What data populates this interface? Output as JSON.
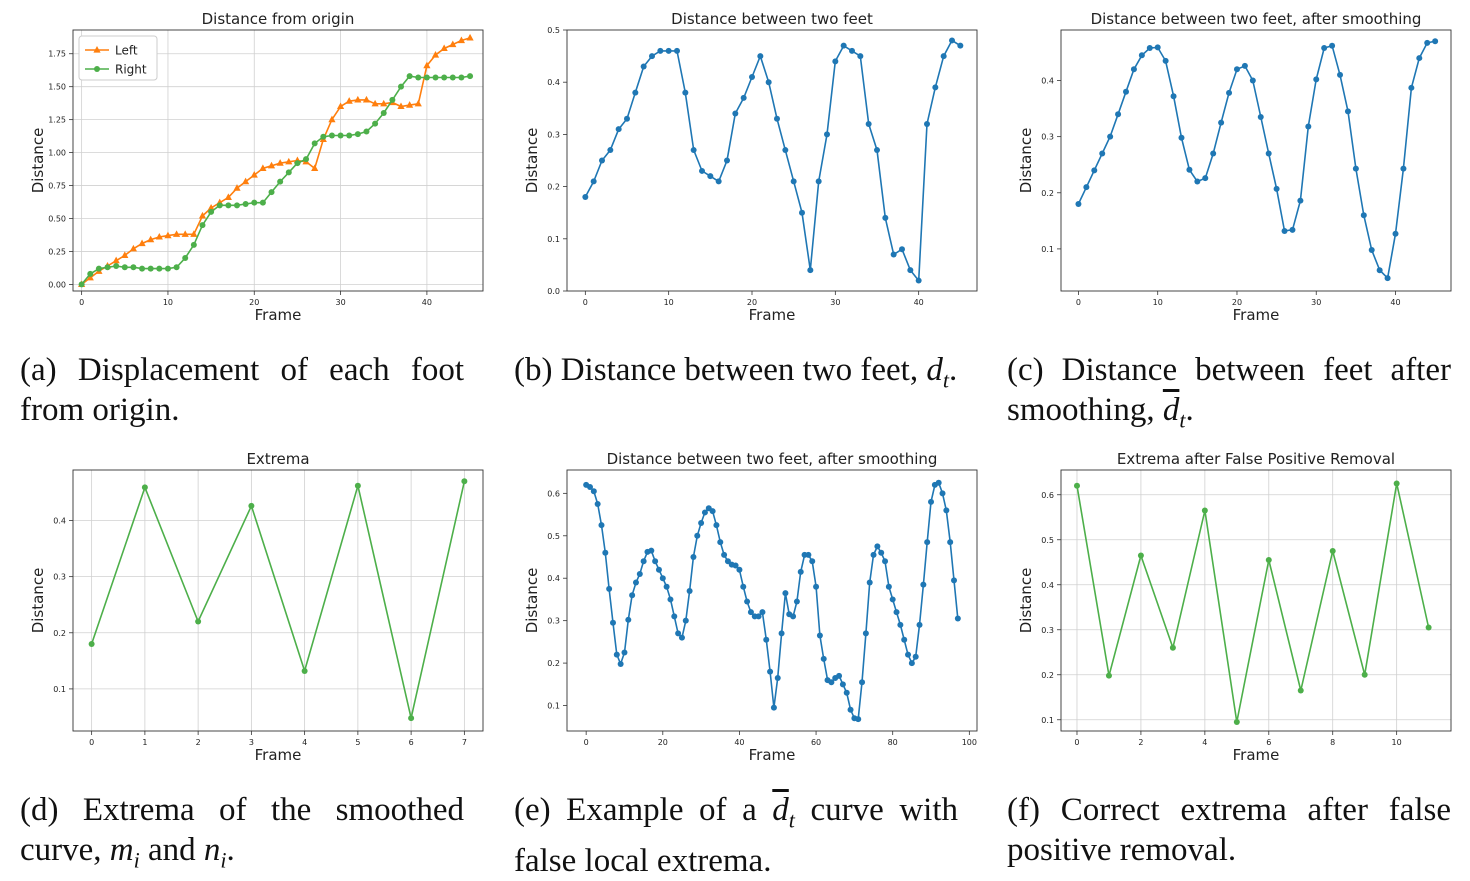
{
  "figure": {
    "captions": [
      "(a) Displacement of each foot from origin.",
      "(b) Distance between two feet, d_t.",
      "(c) Distance between feet after smoothing, d̄_t.",
      "(d) Extrema of the smoothed curve, m_i and n_i.",
      "(e) Example of a d̄_t curve with false local extrema.",
      "(f) Correct extrema after false positive removal."
    ]
  },
  "colors": {
    "orange": "#ff7f0e",
    "blue": "#1f77b4",
    "green": "#4daf4a",
    "grid": "#d0d0d0"
  },
  "chart_data": [
    {
      "type": "line",
      "title": "Distance from origin",
      "xlabel": "Frame",
      "ylabel": "Distance",
      "xlim": [
        -1,
        46.5
      ],
      "ylim": [
        -0.05,
        1.93
      ],
      "xticks": [
        0,
        10,
        20,
        30,
        40
      ],
      "yticks": [
        0.0,
        0.25,
        0.5,
        0.75,
        1.0,
        1.25,
        1.5,
        1.75
      ],
      "ytick_labels": [
        "0.00",
        "0.25",
        "0.50",
        "0.75",
        "1.00",
        "1.25",
        "1.50",
        "1.75"
      ],
      "grid": true,
      "legend": "top-left",
      "series": [
        {
          "name": "Left",
          "color": "#ff7f0e",
          "marker": "triangle",
          "x": [
            0,
            1,
            2,
            3,
            4,
            5,
            6,
            7,
            8,
            9,
            10,
            11,
            12,
            13,
            14,
            15,
            16,
            17,
            18,
            19,
            20,
            21,
            22,
            23,
            24,
            25,
            26,
            27,
            28,
            29,
            30,
            31,
            32,
            33,
            34,
            35,
            36,
            37,
            38,
            39,
            40,
            41,
            42,
            43,
            44,
            45
          ],
          "values": [
            0.0,
            0.05,
            0.1,
            0.14,
            0.18,
            0.22,
            0.27,
            0.31,
            0.34,
            0.36,
            0.37,
            0.38,
            0.38,
            0.38,
            0.52,
            0.58,
            0.62,
            0.66,
            0.73,
            0.78,
            0.83,
            0.88,
            0.9,
            0.92,
            0.93,
            0.94,
            0.93,
            0.88,
            1.1,
            1.25,
            1.35,
            1.39,
            1.4,
            1.4,
            1.37,
            1.37,
            1.38,
            1.35,
            1.36,
            1.37,
            1.66,
            1.74,
            1.79,
            1.82,
            1.85,
            1.87
          ]
        },
        {
          "name": "Right",
          "color": "#4daf4a",
          "marker": "circle",
          "x": [
            0,
            1,
            2,
            3,
            4,
            5,
            6,
            7,
            8,
            9,
            10,
            11,
            12,
            13,
            14,
            15,
            16,
            17,
            18,
            19,
            20,
            21,
            22,
            23,
            24,
            25,
            26,
            27,
            28,
            29,
            30,
            31,
            32,
            33,
            34,
            35,
            36,
            37,
            38,
            39,
            40,
            41,
            42,
            43,
            44,
            45
          ],
          "values": [
            0.0,
            0.08,
            0.12,
            0.13,
            0.14,
            0.13,
            0.13,
            0.12,
            0.12,
            0.12,
            0.12,
            0.13,
            0.2,
            0.3,
            0.45,
            0.55,
            0.6,
            0.6,
            0.6,
            0.61,
            0.62,
            0.62,
            0.7,
            0.78,
            0.85,
            0.92,
            0.95,
            1.07,
            1.12,
            1.13,
            1.13,
            1.13,
            1.14,
            1.16,
            1.22,
            1.3,
            1.4,
            1.5,
            1.58,
            1.57,
            1.57,
            1.57,
            1.57,
            1.57,
            1.57,
            1.58
          ]
        }
      ]
    },
    {
      "type": "line",
      "title": "Distance between two feet",
      "xlabel": "Frame",
      "ylabel": "Distance",
      "xlim": [
        -2.2,
        47
      ],
      "ylim": [
        0,
        0.5
      ],
      "xticks": [
        0,
        10,
        20,
        30,
        40
      ],
      "yticks": [
        0.0,
        0.1,
        0.2,
        0.3,
        0.4,
        0.5
      ],
      "ytick_labels": [
        "0.0",
        "0.1",
        "0.2",
        "0.3",
        "0.4",
        "0.5"
      ],
      "grid": false,
      "series": [
        {
          "name": "",
          "color": "#1f77b4",
          "marker": "circle",
          "x": [
            0,
            1,
            2,
            3,
            4,
            5,
            6,
            7,
            8,
            9,
            10,
            11,
            12,
            13,
            14,
            15,
            16,
            17,
            18,
            19,
            20,
            21,
            22,
            23,
            24,
            25,
            26,
            27,
            28,
            29,
            30,
            31,
            32,
            33,
            34,
            35,
            36,
            37,
            38,
            39,
            40,
            41,
            42,
            43,
            44,
            45
          ],
          "values": [
            0.18,
            0.21,
            0.25,
            0.27,
            0.31,
            0.33,
            0.38,
            0.43,
            0.45,
            0.46,
            0.46,
            0.46,
            0.38,
            0.27,
            0.23,
            0.22,
            0.21,
            0.25,
            0.34,
            0.37,
            0.41,
            0.45,
            0.4,
            0.33,
            0.27,
            0.21,
            0.15,
            0.04,
            0.21,
            0.3,
            0.44,
            0.47,
            0.46,
            0.45,
            0.32,
            0.27,
            0.14,
            0.07,
            0.08,
            0.04,
            0.02,
            0.32,
            0.39,
            0.45,
            0.48,
            0.47
          ]
        }
      ]
    },
    {
      "type": "line",
      "title": "Distance between two feet, after smoothing",
      "xlabel": "Frame",
      "ylabel": "Distance",
      "xlim": [
        -2.2,
        47
      ],
      "ylim": [
        0.025,
        0.49
      ],
      "xticks": [
        0,
        10,
        20,
        30,
        40
      ],
      "yticks": [
        0.1,
        0.2,
        0.3,
        0.4
      ],
      "ytick_labels": [
        "0.1",
        "0.2",
        "0.3",
        "0.4"
      ],
      "grid": false,
      "series": [
        {
          "name": "",
          "color": "#1f77b4",
          "marker": "circle",
          "x": [
            0,
            1,
            2,
            3,
            4,
            5,
            6,
            7,
            8,
            9,
            10,
            11,
            12,
            13,
            14,
            15,
            16,
            17,
            18,
            19,
            20,
            21,
            22,
            23,
            24,
            25,
            26,
            27,
            28,
            29,
            30,
            31,
            32,
            33,
            34,
            35,
            36,
            37,
            38,
            39,
            40,
            41,
            42,
            43,
            44,
            45
          ],
          "values": [
            0.18,
            0.21,
            0.24,
            0.27,
            0.3,
            0.34,
            0.38,
            0.42,
            0.445,
            0.458,
            0.459,
            0.435,
            0.372,
            0.298,
            0.241,
            0.22,
            0.226,
            0.27,
            0.325,
            0.378,
            0.42,
            0.426,
            0.4,
            0.335,
            0.27,
            0.207,
            0.132,
            0.134,
            0.186,
            0.318,
            0.402,
            0.458,
            0.462,
            0.41,
            0.345,
            0.243,
            0.16,
            0.098,
            0.062,
            0.048,
            0.127,
            0.243,
            0.387,
            0.44,
            0.467,
            0.47
          ]
        }
      ]
    },
    {
      "type": "line",
      "title": "Extrema",
      "xlabel": "Frame",
      "ylabel": "Distance",
      "xlim": [
        -0.35,
        7.35
      ],
      "ylim": [
        0.025,
        0.49
      ],
      "xticks": [
        0,
        1,
        2,
        3,
        4,
        5,
        6,
        7
      ],
      "yticks": [
        0.1,
        0.2,
        0.3,
        0.4
      ],
      "ytick_labels": [
        "0.1",
        "0.2",
        "0.3",
        "0.4"
      ],
      "grid": true,
      "series": [
        {
          "name": "",
          "color": "#4daf4a",
          "marker": "circle",
          "x": [
            0,
            1,
            2,
            3,
            4,
            5,
            6,
            7
          ],
          "values": [
            0.18,
            0.459,
            0.22,
            0.426,
            0.132,
            0.462,
            0.048,
            0.47
          ]
        }
      ]
    },
    {
      "type": "line",
      "title": "Distance between two feet, after smoothing",
      "xlabel": "Frame",
      "ylabel": "Distance",
      "xlim": [
        -5,
        102
      ],
      "ylim": [
        0.04,
        0.655
      ],
      "xticks": [
        0,
        20,
        40,
        60,
        80,
        100
      ],
      "yticks": [
        0.1,
        0.2,
        0.3,
        0.4,
        0.5,
        0.6
      ],
      "ytick_labels": [
        "0.1",
        "0.2",
        "0.3",
        "0.4",
        "0.5",
        "0.6"
      ],
      "grid": false,
      "series": [
        {
          "name": "",
          "color": "#1f77b4",
          "marker": "circle",
          "x": [
            0,
            1,
            2,
            3,
            4,
            5,
            6,
            7,
            8,
            9,
            10,
            11,
            12,
            13,
            14,
            15,
            16,
            17,
            18,
            19,
            20,
            21,
            22,
            23,
            24,
            25,
            26,
            27,
            28,
            29,
            30,
            31,
            32,
            33,
            34,
            35,
            36,
            37,
            38,
            39,
            40,
            41,
            42,
            43,
            44,
            45,
            46,
            47,
            48,
            49,
            50,
            51,
            52,
            53,
            54,
            55,
            56,
            57,
            58,
            59,
            60,
            61,
            62,
            63,
            64,
            65,
            66,
            67,
            68,
            69,
            70,
            71,
            72,
            73,
            74,
            75,
            76,
            77,
            78,
            79,
            80,
            81,
            82,
            83,
            84,
            85,
            86,
            87,
            88,
            89,
            90,
            91,
            92,
            93,
            94,
            95,
            96,
            97
          ],
          "values": [
            0.62,
            0.615,
            0.605,
            0.575,
            0.525,
            0.46,
            0.375,
            0.295,
            0.22,
            0.198,
            0.225,
            0.302,
            0.36,
            0.39,
            0.41,
            0.44,
            0.462,
            0.465,
            0.44,
            0.42,
            0.4,
            0.38,
            0.35,
            0.31,
            0.27,
            0.26,
            0.3,
            0.37,
            0.45,
            0.5,
            0.53,
            0.555,
            0.565,
            0.558,
            0.525,
            0.485,
            0.455,
            0.44,
            0.432,
            0.43,
            0.42,
            0.38,
            0.345,
            0.32,
            0.31,
            0.31,
            0.32,
            0.255,
            0.18,
            0.095,
            0.165,
            0.27,
            0.365,
            0.315,
            0.31,
            0.345,
            0.415,
            0.455,
            0.455,
            0.44,
            0.38,
            0.265,
            0.21,
            0.16,
            0.155,
            0.165,
            0.17,
            0.15,
            0.13,
            0.09,
            0.07,
            0.068,
            0.155,
            0.27,
            0.39,
            0.455,
            0.475,
            0.46,
            0.44,
            0.38,
            0.35,
            0.32,
            0.29,
            0.255,
            0.22,
            0.2,
            0.215,
            0.29,
            0.385,
            0.485,
            0.58,
            0.62,
            0.625,
            0.6,
            0.56,
            0.485,
            0.395,
            0.305
          ]
        }
      ]
    },
    {
      "type": "line",
      "title": "Extrema after False Positive Removal",
      "xlabel": "Frame",
      "ylabel": "Distance",
      "xlim": [
        -0.5,
        11.7
      ],
      "ylim": [
        0.075,
        0.655
      ],
      "xticks": [
        0,
        2,
        4,
        6,
        8,
        10
      ],
      "yticks": [
        0.1,
        0.2,
        0.3,
        0.4,
        0.5,
        0.6
      ],
      "ytick_labels": [
        "0.1",
        "0.2",
        "0.3",
        "0.4",
        "0.5",
        "0.6"
      ],
      "grid": true,
      "series": [
        {
          "name": "",
          "color": "#4daf4a",
          "marker": "circle",
          "x": [
            0,
            1,
            2,
            3,
            4,
            5,
            6,
            7,
            8,
            9,
            10,
            11
          ],
          "values": [
            0.62,
            0.198,
            0.465,
            0.26,
            0.565,
            0.095,
            0.455,
            0.165,
            0.475,
            0.2,
            0.625,
            0.305
          ]
        }
      ]
    }
  ]
}
